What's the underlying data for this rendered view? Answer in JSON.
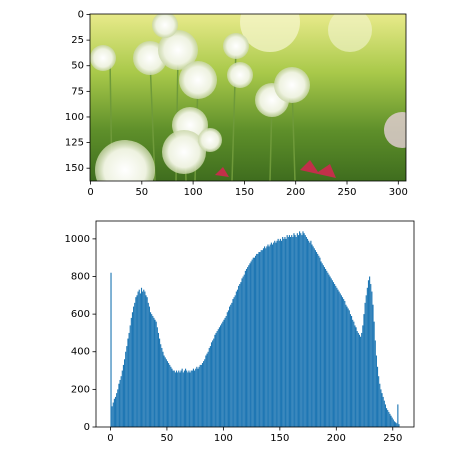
{
  "chart_data": [
    {
      "type": "image",
      "xlim": [
        -0.5,
        307.5
      ],
      "ylim": [
        162.5,
        -0.5
      ],
      "xticks": [
        0,
        50,
        100,
        150,
        200,
        250,
        300
      ],
      "yticks": [
        0,
        25,
        50,
        75,
        100,
        125,
        150
      ]
    },
    {
      "type": "histogram",
      "color": "#1f77b4",
      "xlim": [
        -12.8,
        268.8
      ],
      "ylim": [
        0,
        1095
      ],
      "xticks": [
        0,
        50,
        100,
        150,
        200,
        250
      ],
      "yticks": [
        0,
        200,
        400,
        600,
        800,
        1000
      ],
      "bins": [
        0,
        1,
        2,
        3,
        4,
        5,
        6,
        7,
        8,
        9,
        10,
        11,
        12,
        13,
        14,
        15,
        16,
        17,
        18,
        19,
        20,
        21,
        22,
        23,
        24,
        25,
        26,
        27,
        28,
        29,
        30,
        31,
        32,
        33,
        34,
        35,
        36,
        37,
        38,
        39,
        40,
        41,
        42,
        43,
        44,
        45,
        46,
        47,
        48,
        49,
        50,
        51,
        52,
        53,
        54,
        55,
        56,
        57,
        58,
        59,
        60,
        61,
        62,
        63,
        64,
        65,
        66,
        67,
        68,
        69,
        70,
        71,
        72,
        73,
        74,
        75,
        76,
        77,
        78,
        79,
        80,
        81,
        82,
        83,
        84,
        85,
        86,
        87,
        88,
        89,
        90,
        91,
        92,
        93,
        94,
        95,
        96,
        97,
        98,
        99,
        100,
        101,
        102,
        103,
        104,
        105,
        106,
        107,
        108,
        109,
        110,
        111,
        112,
        113,
        114,
        115,
        116,
        117,
        118,
        119,
        120,
        121,
        122,
        123,
        124,
        125,
        126,
        127,
        128,
        129,
        130,
        131,
        132,
        133,
        134,
        135,
        136,
        137,
        138,
        139,
        140,
        141,
        142,
        143,
        144,
        145,
        146,
        147,
        148,
        149,
        150,
        151,
        152,
        153,
        154,
        155,
        156,
        157,
        158,
        159,
        160,
        161,
        162,
        163,
        164,
        165,
        166,
        167,
        168,
        169,
        170,
        171,
        172,
        173,
        174,
        175,
        176,
        177,
        178,
        179,
        180,
        181,
        182,
        183,
        184,
        185,
        186,
        187,
        188,
        189,
        190,
        191,
        192,
        193,
        194,
        195,
        196,
        197,
        198,
        199,
        200,
        201,
        202,
        203,
        204,
        205,
        206,
        207,
        208,
        209,
        210,
        211,
        212,
        213,
        214,
        215,
        216,
        217,
        218,
        219,
        220,
        221,
        222,
        223,
        224,
        225,
        226,
        227,
        228,
        229,
        230,
        231,
        232,
        233,
        234,
        235,
        236,
        237,
        238,
        239,
        240,
        241,
        242,
        243,
        244,
        245,
        246,
        247,
        248,
        249,
        250,
        251,
        252,
        253,
        254,
        255,
        256
      ],
      "counts": [
        820,
        110,
        130,
        150,
        160,
        180,
        200,
        230,
        250,
        270,
        300,
        330,
        360,
        400,
        430,
        470,
        500,
        540,
        580,
        610,
        640,
        660,
        690,
        700,
        720,
        730,
        710,
        740,
        720,
        730,
        720,
        700,
        690,
        660,
        640,
        610,
        600,
        590,
        580,
        570,
        560,
        530,
        500,
        470,
        440,
        420,
        400,
        380,
        370,
        360,
        350,
        340,
        330,
        320,
        310,
        300,
        300,
        290,
        300,
        290,
        300,
        290,
        300,
        310,
        290,
        300,
        310,
        300,
        290,
        300,
        290,
        300,
        300,
        310,
        300,
        310,
        320,
        310,
        320,
        330,
        330,
        340,
        350,
        360,
        380,
        390,
        400,
        420,
        430,
        450,
        460,
        470,
        490,
        500,
        510,
        520,
        530,
        540,
        550,
        560,
        570,
        580,
        590,
        610,
        620,
        640,
        650,
        660,
        680,
        690,
        700,
        720,
        730,
        750,
        760,
        770,
        790,
        800,
        810,
        830,
        840,
        850,
        860,
        870,
        880,
        890,
        900,
        900,
        910,
        920,
        920,
        930,
        930,
        940,
        940,
        950,
        960,
        950,
        960,
        970,
        960,
        970,
        980,
        970,
        980,
        990,
        980,
        990,
        1000,
        990,
        1000,
        990,
        1010,
        1000,
        1010,
        1000,
        1020,
        1010,
        1020,
        1010,
        1020,
        1010,
        1030,
        1020,
        1010,
        1030,
        1020,
        1040,
        1030,
        1020,
        1040,
        1030,
        1020,
        1010,
        1000,
        990,
        980,
        990,
        970,
        960,
        950,
        940,
        930,
        920,
        910,
        900,
        880,
        870,
        860,
        850,
        840,
        830,
        820,
        810,
        800,
        790,
        780,
        770,
        760,
        750,
        740,
        730,
        720,
        710,
        700,
        690,
        680,
        670,
        650,
        640,
        630,
        620,
        600,
        590,
        570,
        560,
        540,
        530,
        510,
        500,
        490,
        480,
        500,
        540,
        600,
        660,
        700,
        740,
        780,
        800,
        760,
        720,
        650,
        560,
        460,
        380,
        320,
        270,
        230,
        200,
        180,
        160,
        140,
        120,
        100,
        90,
        80,
        70,
        60,
        50,
        40,
        30,
        25,
        20,
        120,
        15
      ]
    }
  ]
}
